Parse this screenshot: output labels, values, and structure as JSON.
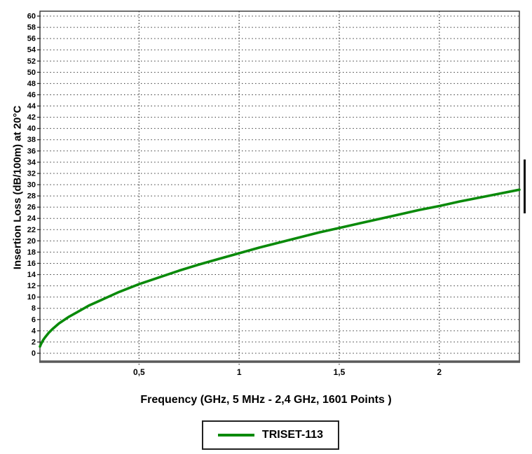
{
  "chart_data": {
    "type": "line",
    "title": "",
    "xlabel": "Frequency (GHz, 5 MHz - 2,4 GHz, 1601 Points )",
    "ylabel": "Insertion Loss (dB/100m) at 20°C",
    "xlim": [
      0.005,
      2.4
    ],
    "ylim": [
      0,
      60
    ],
    "y_tick_step": 2,
    "x_ticks": [
      {
        "value": 0.5,
        "label": "0,5"
      },
      {
        "value": 1.0,
        "label": "1"
      },
      {
        "value": 1.5,
        "label": "1,5"
      },
      {
        "value": 2.0,
        "label": "2"
      }
    ],
    "grid": true,
    "grid_style": "dotted",
    "legend_position": "bottom",
    "series": [
      {
        "name": "TRISET-113",
        "color": "#0a8a0a",
        "points": [
          [
            0.005,
            1.2
          ],
          [
            0.01,
            1.6
          ],
          [
            0.02,
            2.3
          ],
          [
            0.03,
            2.8
          ],
          [
            0.05,
            3.7
          ],
          [
            0.07,
            4.4
          ],
          [
            0.1,
            5.3
          ],
          [
            0.15,
            6.5
          ],
          [
            0.2,
            7.5
          ],
          [
            0.25,
            8.5
          ],
          [
            0.3,
            9.3
          ],
          [
            0.35,
            10.1
          ],
          [
            0.4,
            10.9
          ],
          [
            0.45,
            11.6
          ],
          [
            0.5,
            12.3
          ],
          [
            0.6,
            13.5
          ],
          [
            0.7,
            14.7
          ],
          [
            0.8,
            15.8
          ],
          [
            0.9,
            16.8
          ],
          [
            1.0,
            17.8
          ],
          [
            1.1,
            18.8
          ],
          [
            1.2,
            19.7
          ],
          [
            1.3,
            20.6
          ],
          [
            1.4,
            21.5
          ],
          [
            1.5,
            22.3
          ],
          [
            1.6,
            23.1
          ],
          [
            1.7,
            23.9
          ],
          [
            1.8,
            24.7
          ],
          [
            1.9,
            25.5
          ],
          [
            2.0,
            26.2
          ],
          [
            2.1,
            27.0
          ],
          [
            2.2,
            27.7
          ],
          [
            2.3,
            28.4
          ],
          [
            2.4,
            29.1
          ]
        ]
      }
    ]
  }
}
